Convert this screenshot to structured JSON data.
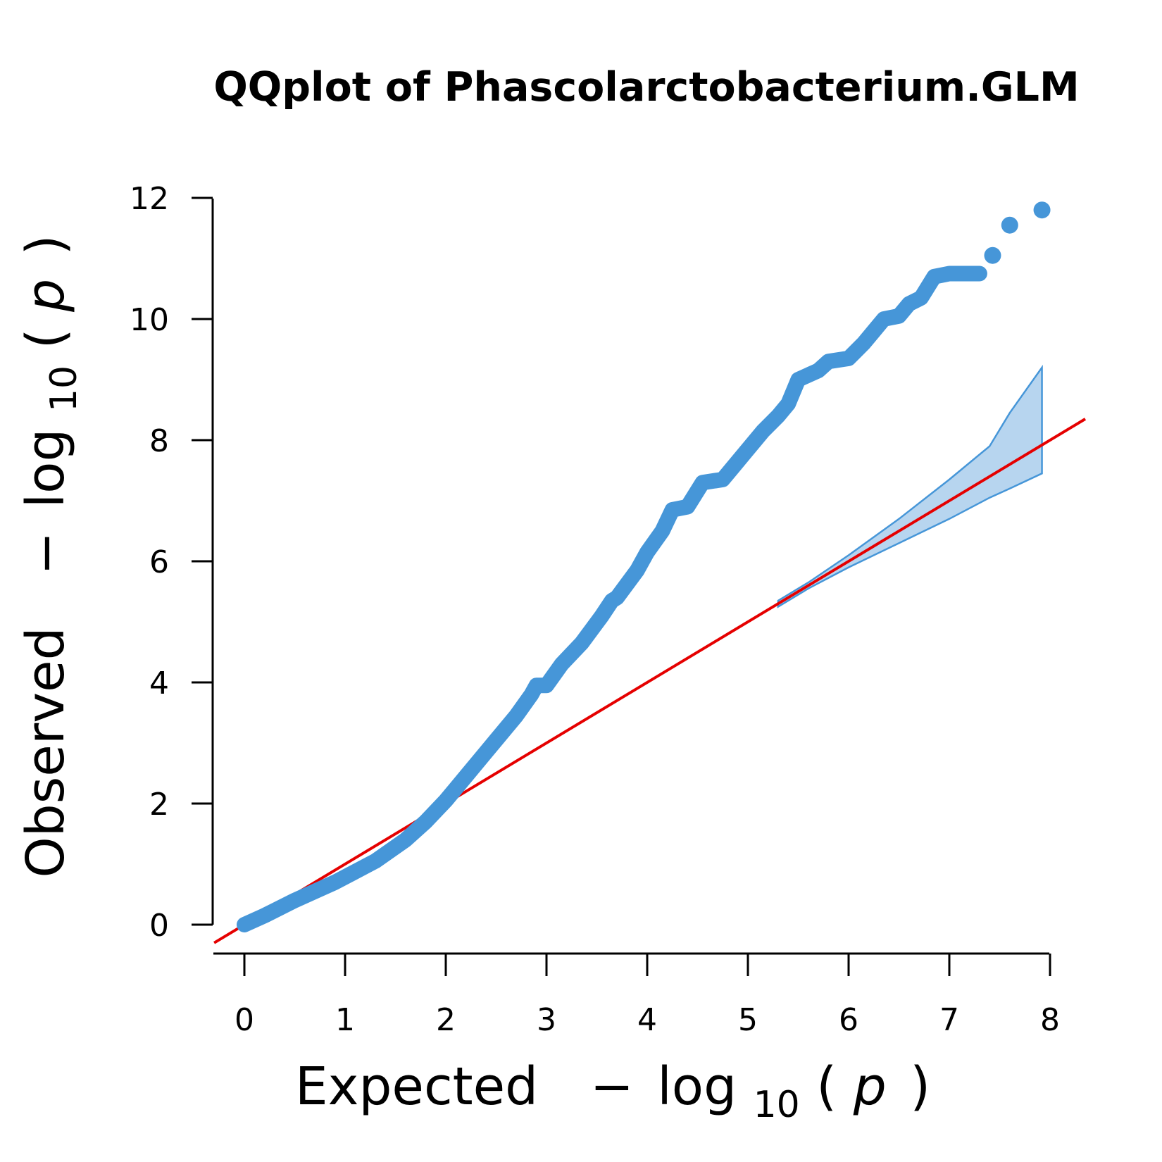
{
  "colors": {
    "points": "#4696D8",
    "band_fill": "#B7D5EF",
    "band_stroke": "#4696D8",
    "diagonal": "#E50000",
    "axis": "#000000"
  },
  "chart_data": {
    "type": "scatter",
    "title": "QQplot of Phascolarctobacterium.GLM",
    "xlabel": {
      "main": "Expected",
      "minus": "−",
      "log": "log",
      "sub": "10",
      "open": "(",
      "p": "p",
      "close": ")"
    },
    "ylabel": {
      "main": "Observed",
      "minus": "−",
      "log": "log",
      "sub": "10",
      "open": "(",
      "p": "p",
      "close": ")"
    },
    "xlim": [
      0,
      8
    ],
    "ylim": [
      0,
      12
    ],
    "x_ticks": [
      "0",
      "1",
      "2",
      "3",
      "4",
      "5",
      "6",
      "7",
      "8"
    ],
    "y_ticks": [
      "0",
      "2",
      "4",
      "6",
      "8",
      "10",
      "12"
    ],
    "grid": false,
    "legend": "none",
    "reference_line": {
      "slope": 1,
      "intercept": 0
    },
    "confidence_band": {
      "x": [
        5.3,
        5.6,
        6.0,
        6.5,
        7.0,
        7.4,
        7.6,
        7.92
      ],
      "upper": [
        5.35,
        5.65,
        6.1,
        6.7,
        7.35,
        7.9,
        8.45,
        9.2
      ],
      "lower": [
        5.25,
        5.55,
        5.9,
        6.3,
        6.7,
        7.05,
        7.2,
        7.45
      ]
    },
    "points_curve": [
      [
        0,
        0
      ],
      [
        0.2,
        0.15
      ],
      [
        0.5,
        0.4
      ],
      [
        0.9,
        0.7
      ],
      [
        1.3,
        1.05
      ],
      [
        1.6,
        1.4
      ],
      [
        1.8,
        1.7
      ],
      [
        2.0,
        2.05
      ],
      [
        2.2,
        2.45
      ],
      [
        2.4,
        2.85
      ],
      [
        2.5,
        3.05
      ],
      [
        2.7,
        3.45
      ],
      [
        2.85,
        3.8
      ],
      [
        2.9,
        3.95
      ],
      [
        3.0,
        3.95
      ],
      [
        3.15,
        4.3
      ],
      [
        3.35,
        4.65
      ],
      [
        3.55,
        5.1
      ],
      [
        3.65,
        5.35
      ],
      [
        3.7,
        5.4
      ],
      [
        3.9,
        5.85
      ],
      [
        4.0,
        6.15
      ],
      [
        4.15,
        6.5
      ],
      [
        4.25,
        6.85
      ],
      [
        4.4,
        6.9
      ],
      [
        4.55,
        7.3
      ],
      [
        4.75,
        7.35
      ],
      [
        4.85,
        7.55
      ],
      [
        5.0,
        7.85
      ],
      [
        5.15,
        8.15
      ],
      [
        5.3,
        8.4
      ],
      [
        5.4,
        8.6
      ],
      [
        5.5,
        9.0
      ],
      [
        5.7,
        9.15
      ],
      [
        5.8,
        9.3
      ],
      [
        6.0,
        9.35
      ],
      [
        6.15,
        9.6
      ],
      [
        6.25,
        9.8
      ],
      [
        6.35,
        10.0
      ],
      [
        6.5,
        10.05
      ],
      [
        6.6,
        10.25
      ],
      [
        6.72,
        10.35
      ],
      [
        6.85,
        10.7
      ],
      [
        7.0,
        10.75
      ],
      [
        7.15,
        10.75
      ],
      [
        7.3,
        10.75
      ]
    ],
    "outlier_points": [
      [
        7.43,
        11.05
      ],
      [
        7.6,
        11.55
      ],
      [
        7.92,
        11.8
      ]
    ]
  }
}
